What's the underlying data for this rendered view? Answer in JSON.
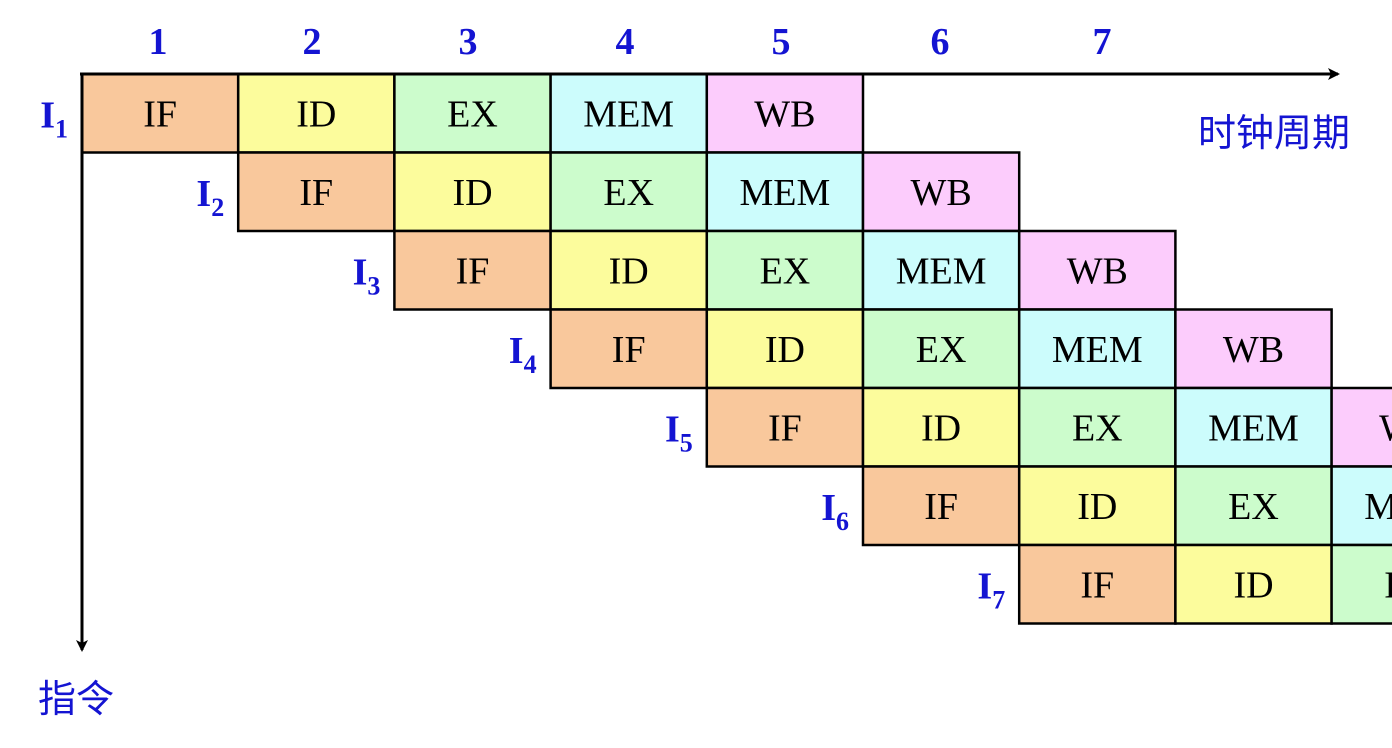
{
  "stages": [
    "IF",
    "ID",
    "EX",
    "MEM",
    "WB"
  ],
  "stage_colors": {
    "IF": "#F9C89C",
    "ID": "#FCFC9C",
    "EX": "#CCFCCC",
    "MEM": "#CCFCFC",
    "WB": "#FCCCFC"
  },
  "label_color": "#1414D2",
  "clock_cycles": [
    "1",
    "2",
    "3",
    "4",
    "5",
    "6",
    "7"
  ],
  "instructions": [
    {
      "name": "I",
      "sub": "1"
    },
    {
      "name": "I",
      "sub": "2"
    },
    {
      "name": "I",
      "sub": "3"
    },
    {
      "name": "I",
      "sub": "4"
    },
    {
      "name": "I",
      "sub": "5"
    },
    {
      "name": "I",
      "sub": "6"
    },
    {
      "name": "I",
      "sub": "7"
    }
  ],
  "x_axis_label": "时钟周期",
  "y_axis_label": "指令"
}
